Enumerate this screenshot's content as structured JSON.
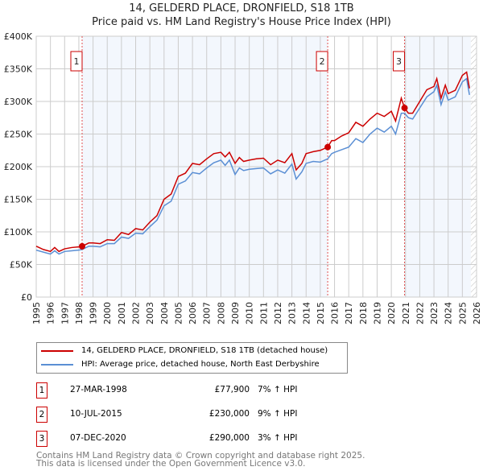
{
  "chart_data": {
    "type": "line",
    "title": "14, GELDERD PLACE, DRONFIELD, S18 1TB",
    "subtitle": "Price paid vs. HM Land Registry's House Price Index (HPI)",
    "xlim": [
      1995,
      2026
    ],
    "ylim": [
      0,
      400000
    ],
    "x_ticks": [
      "1995",
      "1996",
      "1997",
      "1998",
      "1999",
      "2000",
      "2001",
      "2002",
      "2003",
      "2004",
      "2005",
      "2006",
      "2007",
      "2008",
      "2009",
      "2010",
      "2011",
      "2012",
      "2013",
      "2014",
      "2015",
      "2016",
      "2017",
      "2018",
      "2019",
      "2020",
      "2021",
      "2022",
      "2023",
      "2024",
      "2025",
      "2026"
    ],
    "y_ticks": [
      {
        "v": 0,
        "label": "£0"
      },
      {
        "v": 50000,
        "label": "£50K"
      },
      {
        "v": 100000,
        "label": "£100K"
      },
      {
        "v": 150000,
        "label": "£150K"
      },
      {
        "v": 200000,
        "label": "£200K"
      },
      {
        "v": 250000,
        "label": "£250K"
      },
      {
        "v": 300000,
        "label": "£300K"
      },
      {
        "v": 350000,
        "label": "£350K"
      },
      {
        "v": 400000,
        "label": "£400K"
      }
    ],
    "grid": true,
    "series": [
      {
        "name": "14, GELDERD PLACE, DRONFIELD, S18 1TB (detached house)",
        "color": "#cc0000",
        "x": [
          1995,
          1995.5,
          1996,
          1996.3,
          1996.6,
          1997,
          1997.5,
          1998,
          1998.23,
          1998.7,
          1999,
          1999.5,
          2000,
          2000.5,
          2001,
          2001.5,
          2002,
          2002.5,
          2003,
          2003.5,
          2004,
          2004.5,
          2005,
          2005.5,
          2006,
          2006.5,
          2007,
          2007.5,
          2008,
          2008.3,
          2008.6,
          2009,
          2009.3,
          2009.6,
          2010,
          2010.5,
          2011,
          2011.5,
          2012,
          2012.5,
          2013,
          2013.3,
          2013.7,
          2014,
          2014.5,
          2015,
          2015.52,
          2015.8,
          2016,
          2016.5,
          2017,
          2017.5,
          2018,
          2018.5,
          2019,
          2019.5,
          2020,
          2020.3,
          2020.7,
          2020.93,
          2021.2,
          2021.5,
          2022,
          2022.5,
          2023,
          2023.2,
          2023.5,
          2023.8,
          2024,
          2024.5,
          2025,
          2025.3,
          2025.5
        ],
        "y": [
          78000,
          73000,
          70000,
          76000,
          70000,
          74000,
          76000,
          77000,
          77900,
          83000,
          83000,
          82000,
          88000,
          87000,
          99000,
          96000,
          105000,
          103000,
          115000,
          125000,
          150000,
          158000,
          185000,
          190000,
          205000,
          203000,
          212000,
          220000,
          222000,
          215000,
          222000,
          205000,
          214000,
          208000,
          210000,
          212000,
          213000,
          203000,
          210000,
          206000,
          220000,
          195000,
          205000,
          220000,
          223000,
          225000,
          230000,
          240000,
          240000,
          247000,
          252000,
          268000,
          262000,
          273000,
          282000,
          277000,
          285000,
          270000,
          305000,
          290000,
          282000,
          282000,
          300000,
          318000,
          323000,
          335000,
          305000,
          325000,
          312000,
          317000,
          340000,
          345000,
          320000
        ]
      },
      {
        "name": "HPI: Average price, detached house, North East Derbyshire",
        "color": "#5b8fd4",
        "x": [
          1995,
          1995.5,
          1996,
          1996.3,
          1996.6,
          1997,
          1997.5,
          1998,
          1998.23,
          1998.7,
          1999,
          1999.5,
          2000,
          2000.5,
          2001,
          2001.5,
          2002,
          2002.5,
          2003,
          2003.5,
          2004,
          2004.5,
          2005,
          2005.5,
          2006,
          2006.5,
          2007,
          2007.5,
          2008,
          2008.3,
          2008.6,
          2009,
          2009.3,
          2009.6,
          2010,
          2010.5,
          2011,
          2011.5,
          2012,
          2012.5,
          2013,
          2013.3,
          2013.7,
          2014,
          2014.5,
          2015,
          2015.52,
          2015.8,
          2016,
          2016.5,
          2017,
          2017.5,
          2018,
          2018.5,
          2019,
          2019.5,
          2020,
          2020.3,
          2020.7,
          2020.93,
          2021.2,
          2021.5,
          2022,
          2022.5,
          2023,
          2023.2,
          2023.5,
          2023.8,
          2024,
          2024.5,
          2025,
          2025.3,
          2025.5
        ],
        "y": [
          72000,
          69000,
          66000,
          71000,
          66000,
          70000,
          71000,
          72000,
          73000,
          78000,
          78000,
          77000,
          82000,
          82000,
          92000,
          90000,
          98000,
          97000,
          108000,
          118000,
          140000,
          147000,
          173000,
          178000,
          191000,
          189000,
          198000,
          206000,
          210000,
          202000,
          210000,
          188000,
          198000,
          194000,
          196000,
          197000,
          198000,
          189000,
          195000,
          190000,
          204000,
          181000,
          192000,
          205000,
          208000,
          207000,
          212000,
          220000,
          222000,
          226000,
          230000,
          243000,
          237000,
          250000,
          259000,
          253000,
          262000,
          250000,
          282000,
          282000,
          275000,
          273000,
          290000,
          307000,
          315000,
          325000,
          295000,
          315000,
          302000,
          307000,
          330000,
          335000,
          310000
        ]
      }
    ],
    "sales": [
      {
        "label": "1",
        "x": 1998.23,
        "price": 77900
      },
      {
        "label": "2",
        "x": 2015.52,
        "price": 230000
      },
      {
        "label": "3",
        "x": 2020.93,
        "price": 290000
      }
    ],
    "data_end": 2025.6,
    "legend": [
      "14, GELDERD PLACE, DRONFIELD, S18 1TB (detached house)",
      "HPI: Average price, detached house, North East Derbyshire"
    ]
  },
  "table": [
    {
      "num": "1",
      "date": "27-MAR-1998",
      "price": "£77,900",
      "hpi": "7% ↑ HPI"
    },
    {
      "num": "2",
      "date": "10-JUL-2015",
      "price": "£230,000",
      "hpi": "9% ↑ HPI"
    },
    {
      "num": "3",
      "date": "07-DEC-2020",
      "price": "£290,000",
      "hpi": "3% ↑ HPI"
    }
  ],
  "footer": {
    "line1": "Contains HM Land Registry data © Crown copyright and database right 2025.",
    "line2": "This data is licensed under the Open Government Licence v3.0."
  }
}
